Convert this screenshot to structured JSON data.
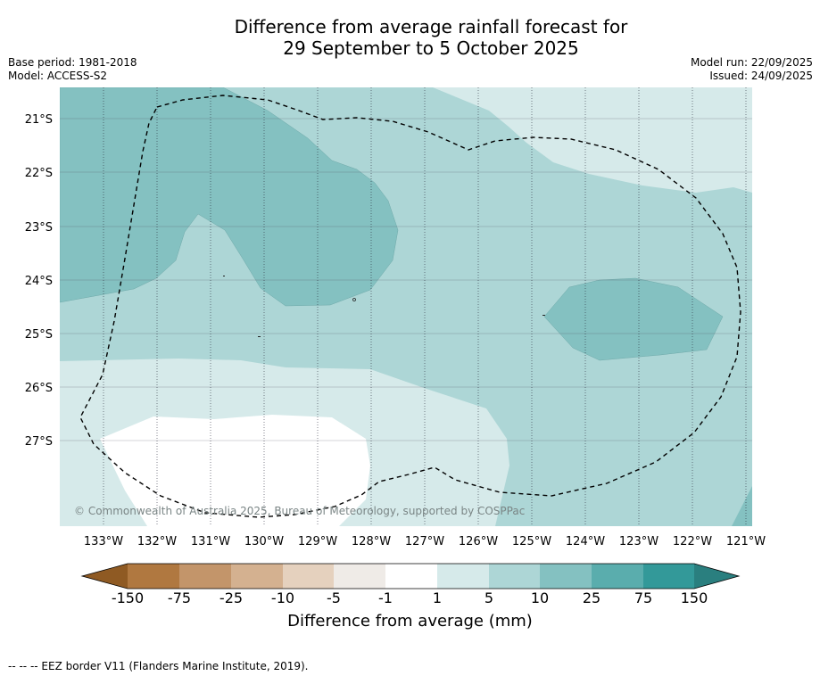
{
  "title_line1": "Difference from average rainfall forecast for",
  "title_line2": "29 September to 5 October 2025",
  "base_period": "Base period: 1981-2018",
  "model": "Model: ACCESS-S2",
  "model_run": "Model run: 22/09/2025",
  "issued": "Issued: 24/09/2025",
  "copyright": "© Commonwealth of Australia 2025, Bureau of Meteorology, supported by COSPPac",
  "lat_labels": [
    "21°S",
    "22°S",
    "23°S",
    "24°S",
    "25°S",
    "26°S",
    "27°S"
  ],
  "lon_labels": [
    "133°W",
    "132°W",
    "131°W",
    "130°W",
    "129°W",
    "128°W",
    "127°W",
    "126°W",
    "125°W",
    "124°W",
    "123°W",
    "122°W",
    "121°W"
  ],
  "colorbar": {
    "labels": [
      "-150",
      "-75",
      "-25",
      "-10",
      "-5",
      "-1",
      "1",
      "5",
      "10",
      "25",
      "75",
      "150"
    ],
    "colors": [
      "#8f5a23",
      "#b07840",
      "#c3956a",
      "#d4b190",
      "#e5d1be",
      "#efebe7",
      "#ffffff",
      "#d6eaea",
      "#add6d6",
      "#84c1c1",
      "#5aadad",
      "#339999",
      "#2a7f7f"
    ],
    "title": "Difference from average (mm)"
  },
  "legend_text": "--  --  -- EEZ border V11 (Flanders Marine Institute, 2019)."
}
